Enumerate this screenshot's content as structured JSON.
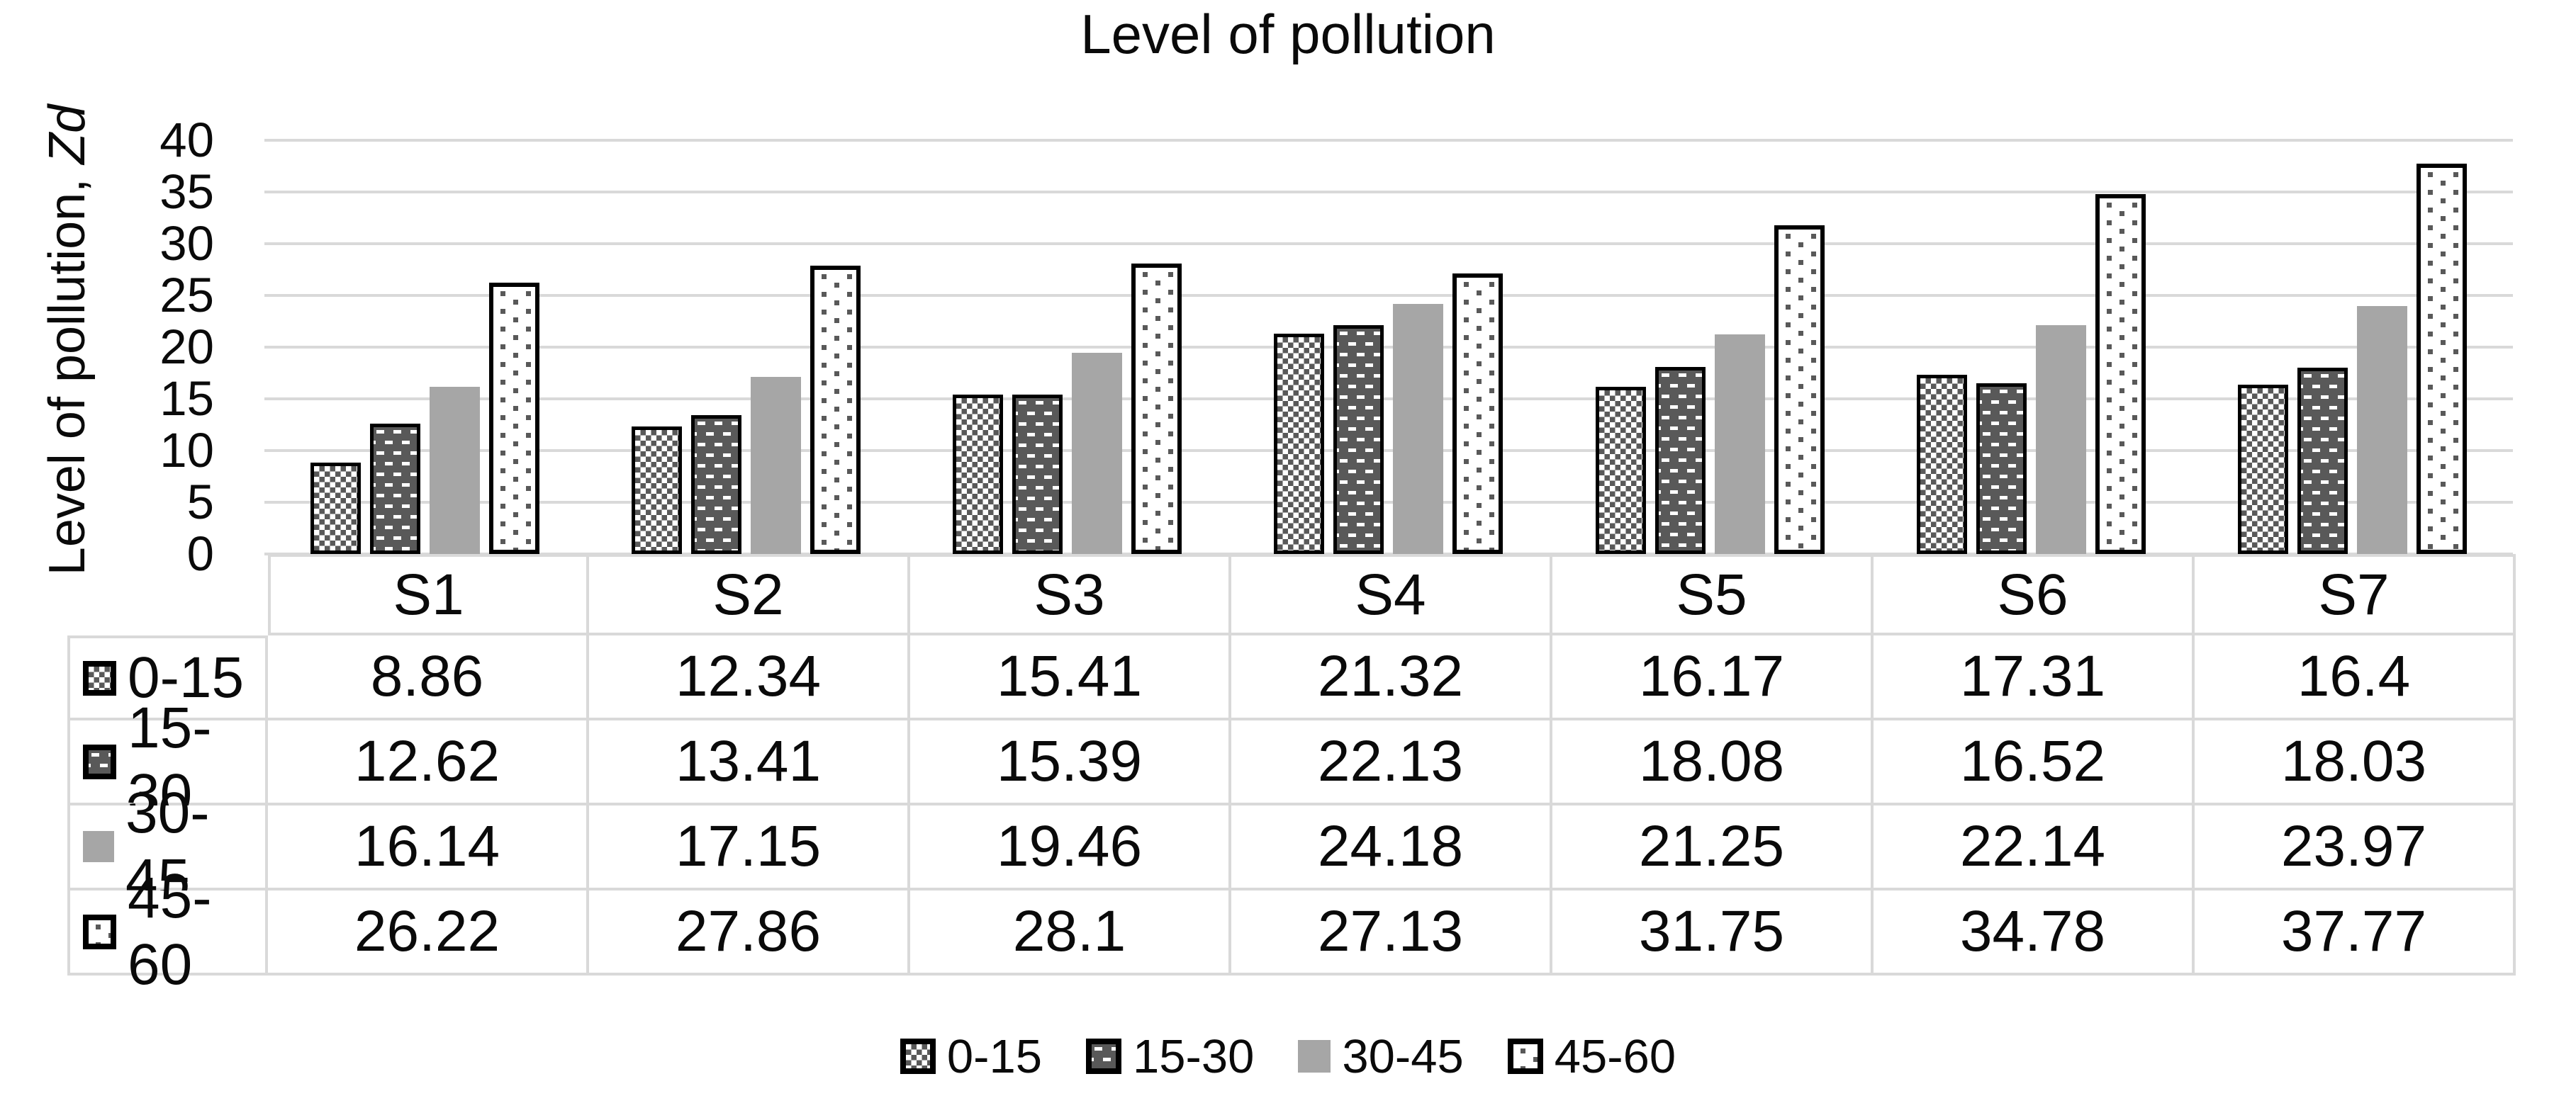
{
  "chart_data": {
    "type": "bar",
    "title": "Level of pollution",
    "ylabel_prefix": "Level of pollution, ",
    "ylabel_italic_suffix": "Zd",
    "ylim": [
      0,
      40
    ],
    "ytick_step": 5,
    "yticks": [
      40,
      35,
      30,
      25,
      20,
      15,
      10,
      5,
      0
    ],
    "grid": true,
    "legend_position": "bottom",
    "data_table_shown": true,
    "categories": [
      "S1",
      "S2",
      "S3",
      "S4",
      "S5",
      "S6",
      "S7"
    ],
    "series": [
      {
        "name": "0-15",
        "pattern": "checker",
        "values": [
          8.86,
          12.34,
          15.41,
          21.32,
          16.17,
          17.31,
          16.4
        ]
      },
      {
        "name": "15-30",
        "pattern": "brick",
        "values": [
          12.62,
          13.41,
          15.39,
          22.13,
          18.08,
          16.52,
          18.03
        ]
      },
      {
        "name": "30-45",
        "pattern": "solid",
        "values": [
          16.14,
          17.15,
          19.46,
          24.18,
          21.25,
          22.14,
          23.97
        ]
      },
      {
        "name": "45-60",
        "pattern": "dots",
        "values": [
          26.22,
          27.86,
          28.1,
          27.13,
          31.75,
          34.78,
          37.77
        ]
      }
    ]
  },
  "colors": {
    "pattern_dark": "#595959",
    "solid_gray": "#a6a6a6",
    "gridline": "#d9d9d9",
    "bar_border": "#000000",
    "text": "#0a0a0a",
    "background": "#ffffff"
  }
}
